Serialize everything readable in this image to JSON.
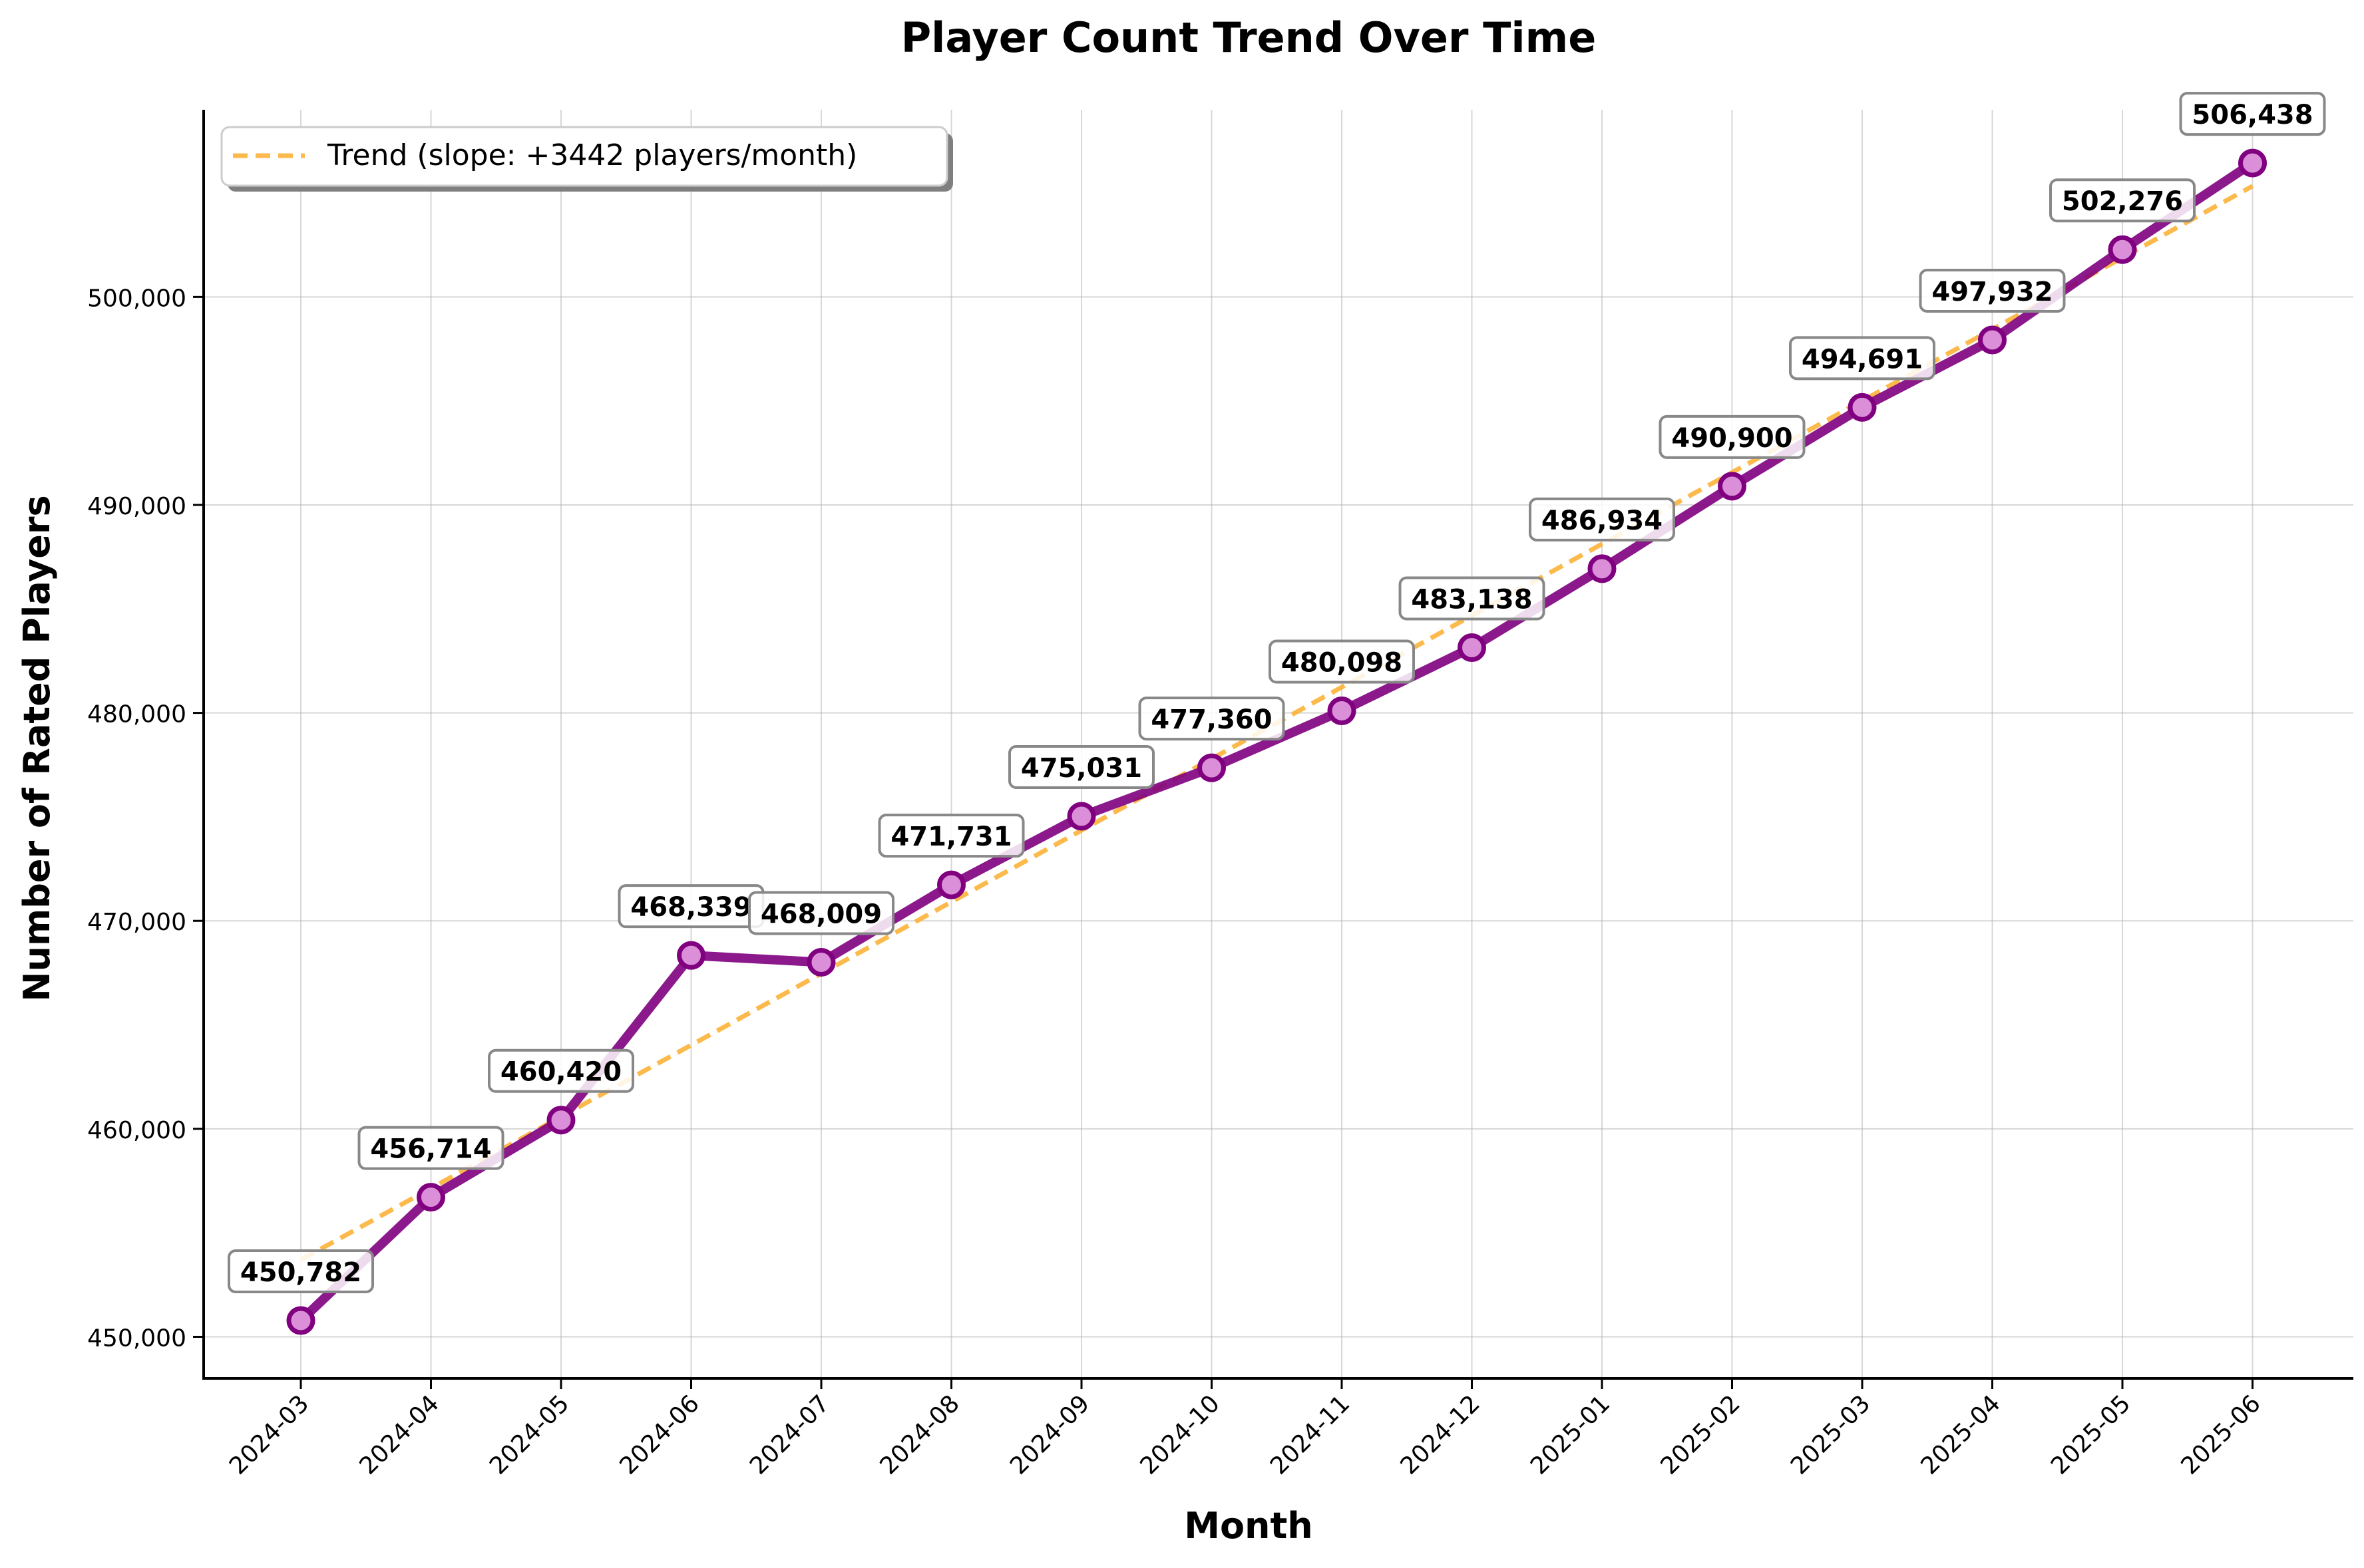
{
  "chart_data": {
    "type": "line",
    "title": "Player Count Trend Over Time",
    "xlabel": "Month",
    "ylabel": "Number of Rated Players",
    "categories": [
      "2024-03",
      "2024-04",
      "2024-05",
      "2024-06",
      "2024-07",
      "2024-08",
      "2024-09",
      "2024-10",
      "2024-11",
      "2024-12",
      "2025-01",
      "2025-02",
      "2025-03",
      "2025-04",
      "2025-05",
      "2025-06"
    ],
    "series": [
      {
        "values": [
          450782,
          456714,
          460420,
          468339,
          468009,
          471731,
          475031,
          477360,
          480098,
          483138,
          486934,
          490900,
          494691,
          497932,
          502276,
          506438
        ],
        "data_labels": [
          "450,782",
          "456,714",
          "460,420",
          "468,339",
          "468,009",
          "471,731",
          "475,031",
          "477,360",
          "480,098",
          "483,138",
          "486,934",
          "490,900",
          "494,691",
          "497,932",
          "502,276",
          "506,438"
        ],
        "color": "#800080",
        "marker_fill": "#DA8FD8"
      }
    ],
    "trend": {
      "name": "Trend (slope: +3442 players/month)",
      "start": 453700,
      "end": 505330,
      "color": "#FDB338",
      "style": "dashed"
    },
    "y_ticks": [
      450000,
      460000,
      470000,
      480000,
      490000,
      500000
    ],
    "y_tick_labels": [
      "450,000",
      "460,000",
      "470,000",
      "480,000",
      "490,000",
      "500,000"
    ],
    "ylim": [
      448000,
      509000
    ],
    "grid": true,
    "legend_position": "top-left"
  }
}
